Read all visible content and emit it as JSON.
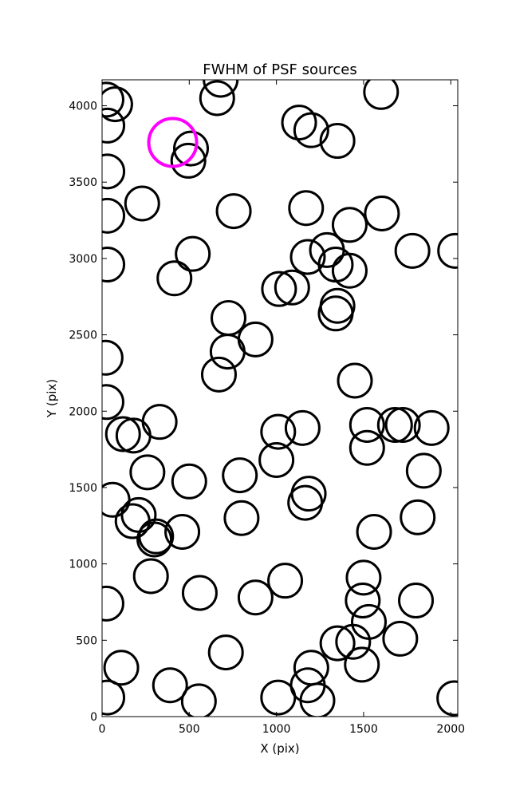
{
  "chart_data": {
    "type": "scatter",
    "title": "FWHM of PSF sources",
    "xlabel": "X (pix)",
    "ylabel": "Y (pix)",
    "xlim": [
      0,
      2040
    ],
    "ylim": [
      0,
      4170
    ],
    "xticks": [
      0,
      500,
      1000,
      1500,
      2000
    ],
    "yticks": [
      0,
      500,
      1000,
      1500,
      2000,
      2500,
      3000,
      3500,
      4000
    ],
    "grid": false,
    "marker": "open-circle",
    "colors": {
      "default": "#000000",
      "highlight": "#ff00ff"
    },
    "series": [
      {
        "points": [
          [
            25,
            4040
          ],
          [
            75,
            4010
          ],
          [
            30,
            3870
          ],
          [
            30,
            3570
          ],
          [
            30,
            3280
          ],
          [
            30,
            2960
          ],
          [
            230,
            3360
          ],
          [
            415,
            2870
          ],
          [
            520,
            3030
          ],
          [
            510,
            3720
          ],
          [
            495,
            3640
          ],
          [
            680,
            4170
          ],
          [
            660,
            4050
          ],
          [
            755,
            3310
          ],
          [
            1130,
            3890
          ],
          [
            1200,
            3840
          ],
          [
            1350,
            3770
          ],
          [
            1600,
            4090
          ],
          [
            1170,
            3330
          ],
          [
            1420,
            3220
          ],
          [
            1605,
            3295
          ],
          [
            1780,
            3050
          ],
          [
            2025,
            3050
          ],
          [
            1180,
            3010
          ],
          [
            1290,
            3055
          ],
          [
            1340,
            2960
          ],
          [
            1420,
            2920
          ],
          [
            1015,
            2800
          ],
          [
            1090,
            2810
          ],
          [
            1350,
            2690
          ],
          [
            1340,
            2640
          ],
          [
            725,
            2610
          ],
          [
            880,
            2470
          ],
          [
            720,
            2390
          ],
          [
            670,
            2240
          ],
          [
            1450,
            2200
          ],
          [
            20,
            2350
          ],
          [
            25,
            2060
          ],
          [
            330,
            1930
          ],
          [
            1520,
            1910
          ],
          [
            1680,
            1910
          ],
          [
            1725,
            1910
          ],
          [
            1890,
            1890
          ],
          [
            1010,
            1865
          ],
          [
            1150,
            1890
          ],
          [
            120,
            1850
          ],
          [
            180,
            1840
          ],
          [
            1520,
            1760
          ],
          [
            1000,
            1680
          ],
          [
            260,
            1600
          ],
          [
            790,
            1580
          ],
          [
            500,
            1540
          ],
          [
            1845,
            1610
          ],
          [
            60,
            1420
          ],
          [
            1185,
            1460
          ],
          [
            1165,
            1400
          ],
          [
            210,
            1320
          ],
          [
            175,
            1280
          ],
          [
            310,
            1180
          ],
          [
            300,
            1160
          ],
          [
            460,
            1210
          ],
          [
            800,
            1300
          ],
          [
            1810,
            1305
          ],
          [
            1560,
            1210
          ],
          [
            25,
            740
          ],
          [
            280,
            920
          ],
          [
            560,
            810
          ],
          [
            880,
            780
          ],
          [
            1050,
            890
          ],
          [
            1500,
            910
          ],
          [
            1495,
            760
          ],
          [
            1530,
            620
          ],
          [
            1800,
            760
          ],
          [
            710,
            420
          ],
          [
            1350,
            480
          ],
          [
            1440,
            490
          ],
          [
            1710,
            510
          ],
          [
            110,
            320
          ],
          [
            1200,
            320
          ],
          [
            1490,
            340
          ],
          [
            390,
            205
          ],
          [
            1180,
            205
          ],
          [
            30,
            125
          ],
          [
            555,
            100
          ],
          [
            1010,
            125
          ],
          [
            1235,
            105
          ],
          [
            2020,
            120
          ]
        ]
      },
      {
        "points": [
          [
            405,
            3760
          ]
        ]
      }
    ]
  }
}
